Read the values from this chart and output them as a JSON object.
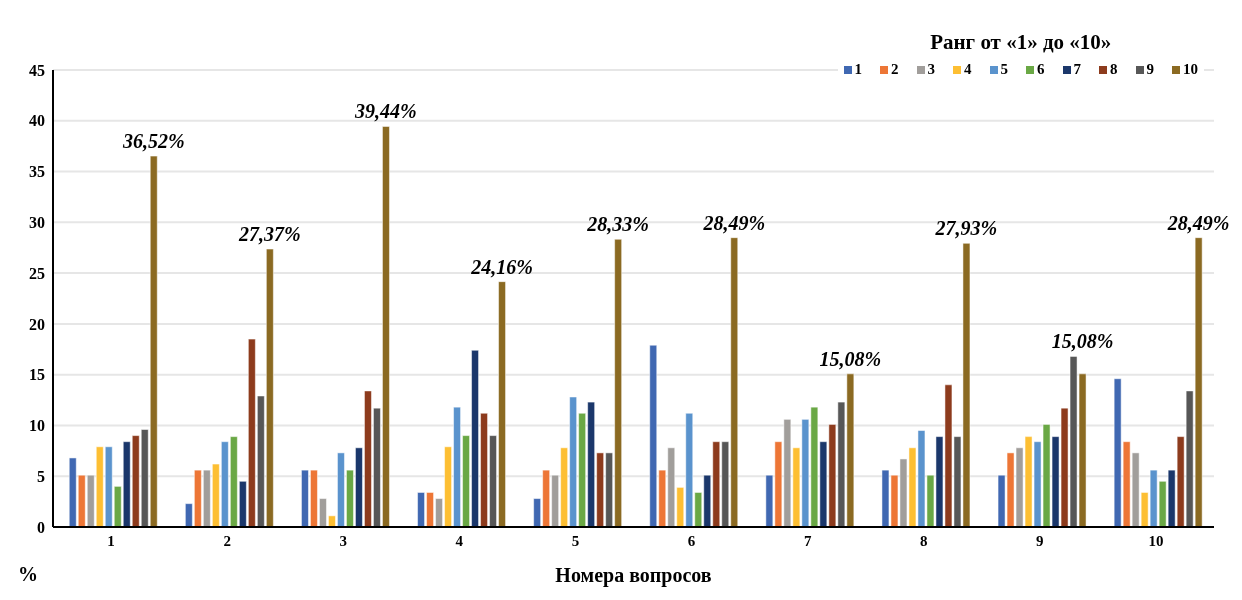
{
  "chart_data": {
    "type": "bar",
    "xlabel": "Номера вопросов",
    "ylabel": "%",
    "legend_title": "Ранг от «1» до «10»",
    "categories": [
      "1",
      "2",
      "3",
      "4",
      "5",
      "6",
      "7",
      "8",
      "9",
      "10"
    ],
    "series": [
      {
        "name": "1",
        "color": "#4068b2",
        "values": [
          6.8,
          2.3,
          5.6,
          3.4,
          2.8,
          17.9,
          5.1,
          5.6,
          5.1,
          14.6
        ]
      },
      {
        "name": "2",
        "color": "#ed7636",
        "values": [
          5.1,
          5.6,
          5.6,
          3.4,
          5.6,
          5.6,
          8.4,
          5.1,
          7.3,
          8.4
        ]
      },
      {
        "name": "3",
        "color": "#a19e9b",
        "values": [
          5.1,
          5.6,
          2.8,
          2.8,
          5.1,
          7.8,
          10.6,
          6.7,
          7.8,
          7.3
        ]
      },
      {
        "name": "4",
        "color": "#fdbf33",
        "values": [
          7.9,
          6.2,
          1.1,
          7.9,
          7.8,
          3.9,
          7.8,
          7.8,
          8.9,
          3.4
        ]
      },
      {
        "name": "5",
        "color": "#5a93cd",
        "values": [
          7.9,
          8.4,
          7.3,
          11.8,
          12.8,
          11.2,
          10.6,
          9.5,
          8.4,
          5.6
        ]
      },
      {
        "name": "6",
        "color": "#6aa845",
        "values": [
          4.0,
          8.9,
          5.6,
          9.0,
          11.2,
          3.4,
          11.8,
          5.1,
          10.1,
          4.5
        ]
      },
      {
        "name": "7",
        "color": "#1b376b",
        "values": [
          8.4,
          4.5,
          7.8,
          17.4,
          12.3,
          5.1,
          8.4,
          8.9,
          8.9,
          5.6
        ]
      },
      {
        "name": "8",
        "color": "#8d3b1d",
        "values": [
          9.0,
          18.5,
          13.4,
          11.2,
          7.3,
          8.4,
          10.1,
          14.0,
          11.7,
          8.9
        ]
      },
      {
        "name": "9",
        "color": "#575757",
        "values": [
          9.6,
          12.9,
          11.7,
          9.0,
          7.3,
          8.4,
          12.3,
          8.9,
          16.8,
          13.4
        ]
      },
      {
        "name": "10",
        "color": "#8b6a22",
        "values": [
          36.52,
          27.37,
          39.44,
          24.16,
          28.33,
          28.49,
          15.08,
          27.93,
          15.08,
          28.49
        ],
        "value_labels": [
          "36,52%",
          "27,37%",
          "39,44%",
          "24,16%",
          "28,33%",
          "28,49%",
          "15,08%",
          "27,93%",
          "15,08%",
          "28,49%"
        ]
      }
    ],
    "ylim": [
      0,
      45
    ],
    "yticks": [
      0,
      5,
      10,
      15,
      20,
      25,
      30,
      35,
      40,
      45
    ],
    "grid": "y",
    "legend": "top right"
  }
}
